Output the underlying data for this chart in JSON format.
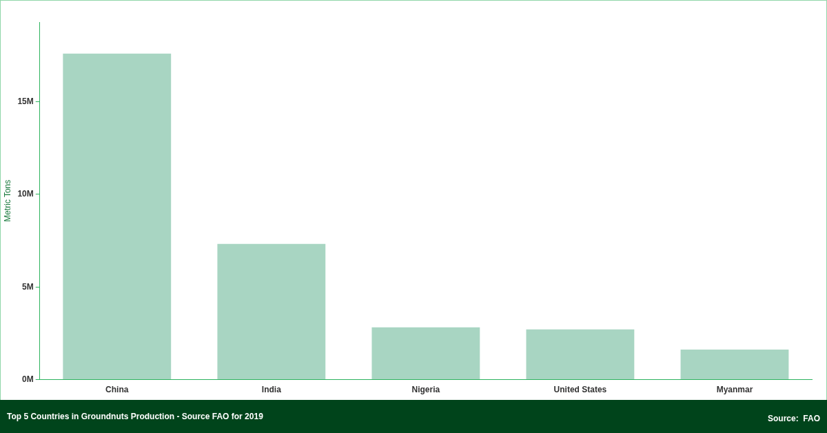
{
  "chart_data": {
    "type": "bar",
    "title": "Top 5 Countries in Groundnuts Production - Source FAO for 2019",
    "ylabel": "Metric Tons",
    "categories": [
      "China",
      "India",
      "Nigeria",
      "United States",
      "Myanmar"
    ],
    "values": [
      17600000,
      7330000,
      2820000,
      2710000,
      1620000
    ],
    "color": "#a8d5c2",
    "ylim": [
      0,
      19300000
    ],
    "yticks": [
      {
        "value": 0,
        "label": "0M"
      },
      {
        "value": 5000000,
        "label": "5M"
      },
      {
        "value": 10000000,
        "label": "10M"
      },
      {
        "value": 15000000,
        "label": "15M"
      }
    ],
    "grid": false,
    "legend": false,
    "annotations": [
      "Source:  FAO"
    ]
  }
}
